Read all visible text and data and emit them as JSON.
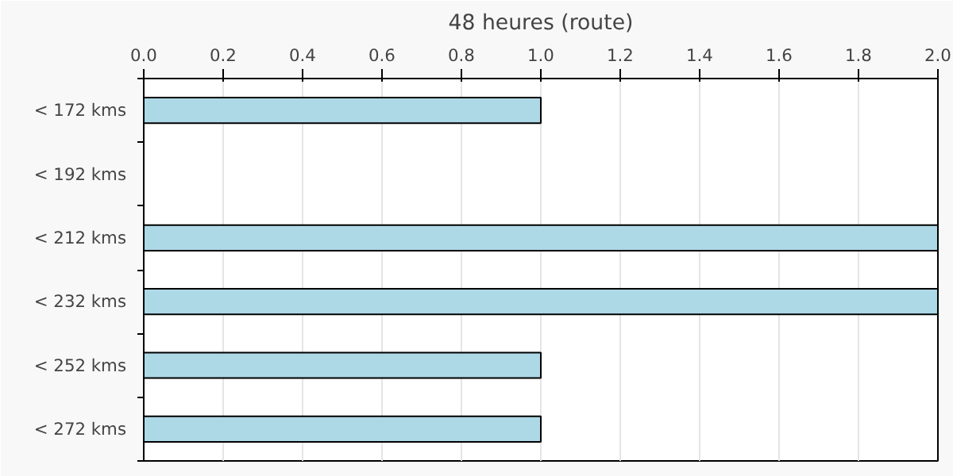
{
  "chart_data": {
    "type": "bar",
    "orientation": "horizontal",
    "title": "48 heures (route)",
    "categories": [
      "< 172 kms",
      "< 192 kms",
      "< 212 kms",
      "< 232 kms",
      "< 252 kms",
      "< 272 kms"
    ],
    "values": [
      1,
      0,
      2,
      2,
      1,
      1
    ],
    "color": "#add8e6",
    "xlim": [
      0,
      2
    ],
    "xticks": [
      {
        "value": 0,
        "label": "0.0"
      },
      0.2,
      0.4,
      0.6,
      0.8,
      {
        "value": 1,
        "label": "1.0"
      },
      1.2,
      1.4,
      1.6,
      1.8,
      {
        "value": 2,
        "label": "2.0"
      }
    ],
    "grid": "x"
  }
}
